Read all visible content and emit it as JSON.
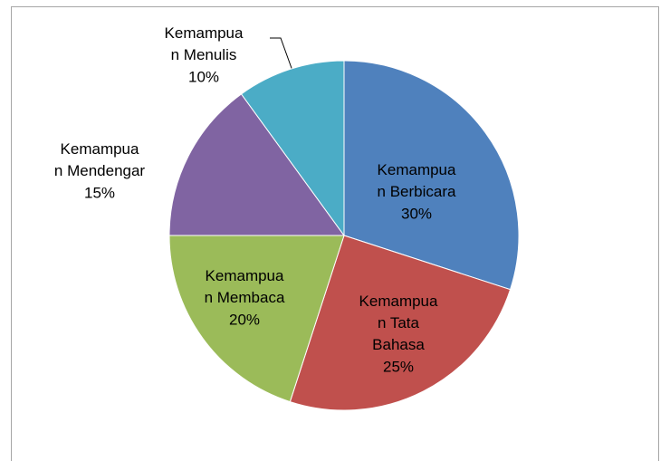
{
  "chart_data": {
    "type": "pie",
    "categories": [
      "Kemampuan Berbicara",
      "Kemampuan Tata Bahasa",
      "Kemampuan Membaca",
      "Kemampuan Mendengar",
      "Kemampuan Menulis"
    ],
    "values": [
      30,
      25,
      20,
      15,
      10
    ],
    "value_labels": [
      "30%",
      "25%",
      "20%",
      "15%",
      "10%"
    ],
    "colors": [
      "#4f81bd",
      "#c0504d",
      "#9bbb59",
      "#8064a2",
      "#4bacc6"
    ]
  }
}
